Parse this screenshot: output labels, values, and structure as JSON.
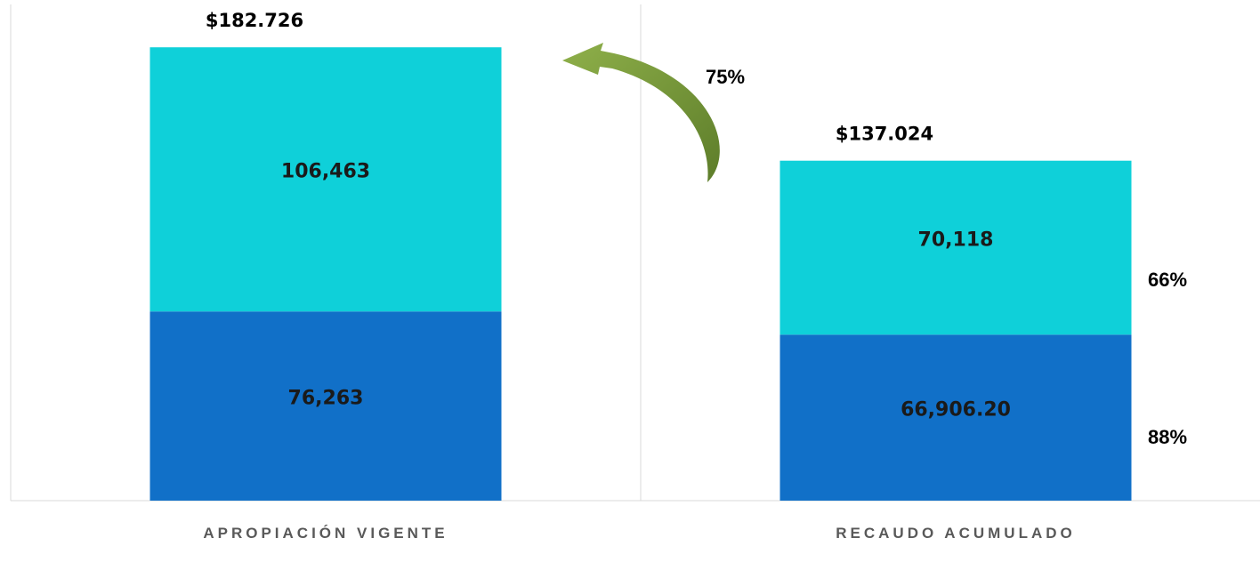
{
  "chart_data": {
    "type": "stacked_bar",
    "categories": [
      "APROPIACIÓN VIGENTE",
      "RECAUDO ACUMULADO"
    ],
    "series": [
      {
        "color": "#1170c8",
        "values": [
          76263,
          66906.2
        ],
        "value_labels": [
          "76,263",
          "66,906.20"
        ]
      },
      {
        "color": "#0fd0d9",
        "values": [
          106463,
          70118
        ],
        "value_labels": [
          "106,463",
          "70,118"
        ]
      }
    ],
    "totals": {
      "values": [
        182726,
        137024
      ],
      "value_labels": [
        "$182.726",
        "$137.024"
      ]
    },
    "ylim": [
      0,
      200000
    ],
    "annotations": [
      "75%",
      "66%",
      "88%"
    ]
  }
}
